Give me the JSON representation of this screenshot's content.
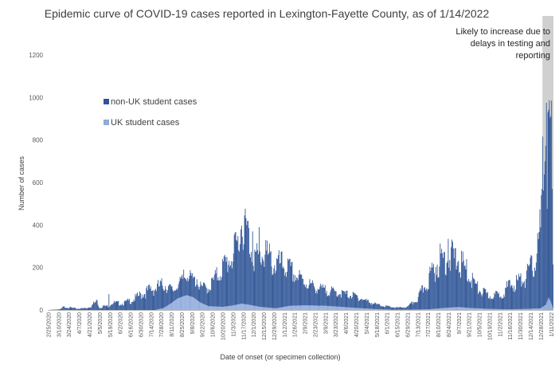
{
  "chart_data": {
    "type": "bar",
    "stacked": true,
    "title": "Epidemic curve of COVID-19 cases reported in Lexington-Fayette County, as of 1/14/2022",
    "xlabel": "Date of onset (or specimen collection)",
    "ylabel": "Number of cases",
    "ylim": [
      0,
      1200
    ],
    "yticks": [
      0,
      200,
      400,
      600,
      800,
      1000,
      1200
    ],
    "grid": false,
    "legend_position": "upper-left",
    "x_range": [
      "2020-02-25",
      "2022-01-14"
    ],
    "x_tick_labels": [
      "2/25/2020",
      "3/10/2020",
      "3/24/2020",
      "4/7/2020",
      "4/21/2020",
      "5/5/2020",
      "5/19/2020",
      "6/2/2020",
      "6/16/2020",
      "6/30/2020",
      "7/14/2020",
      "7/28/2020",
      "8/11/2020",
      "8/25/2020",
      "9/8/2020",
      "9/22/2020",
      "10/6/2020",
      "10/20/2020",
      "11/3/2020",
      "11/17/2020",
      "12/1/2020",
      "12/15/2020",
      "12/29/2020",
      "1/12/2021",
      "1/26/2021",
      "2/9/2021",
      "2/23/2021",
      "3/9/2021",
      "3/23/2021",
      "4/6/2021",
      "4/20/2021",
      "5/4/2021",
      "5/18/2021",
      "6/1/2021",
      "6/15/2021",
      "6/29/2021",
      "7/13/2021",
      "7/27/2021",
      "8/10/2021",
      "8/24/2021",
      "9/7/2021",
      "9/21/2021",
      "10/5/2021",
      "10/19/2021",
      "11/2/2021",
      "11/16/2021",
      "11/30/2021",
      "12/14/2021",
      "12/28/2021",
      "1/11/2022"
    ],
    "series": [
      {
        "name": "non-UK student cases",
        "color": "#2f5597",
        "points": [
          [
            "2020-02-25",
            0
          ],
          [
            "2020-03-13",
            3
          ],
          [
            "2020-03-17",
            12
          ],
          [
            "2020-03-25",
            10
          ],
          [
            "2020-04-05",
            5
          ],
          [
            "2020-04-18",
            8
          ],
          [
            "2020-04-24",
            15
          ],
          [
            "2020-04-27",
            25
          ],
          [
            "2020-05-02",
            35
          ],
          [
            "2020-05-05",
            8
          ],
          [
            "2020-05-10",
            15
          ],
          [
            "2020-05-18",
            15
          ],
          [
            "2020-05-22",
            28
          ],
          [
            "2020-06-05",
            25
          ],
          [
            "2020-06-20",
            40
          ],
          [
            "2020-07-01",
            60
          ],
          [
            "2020-07-15",
            80
          ],
          [
            "2020-08-01",
            90
          ],
          [
            "2020-08-15",
            40
          ],
          [
            "2020-09-01",
            80
          ],
          [
            "2020-09-20",
            60
          ],
          [
            "2020-10-01",
            70
          ],
          [
            "2020-10-20",
            150
          ],
          [
            "2020-11-05",
            200
          ],
          [
            "2020-11-12",
            250
          ],
          [
            "2020-11-16",
            330
          ],
          [
            "2020-11-20",
            300
          ],
          [
            "2020-11-30",
            200
          ],
          [
            "2020-12-08",
            180
          ],
          [
            "2020-12-15",
            210
          ],
          [
            "2020-12-29",
            170
          ],
          [
            "2021-01-12",
            160
          ],
          [
            "2021-01-26",
            120
          ],
          [
            "2021-02-09",
            90
          ],
          [
            "2021-02-23",
            70
          ],
          [
            "2021-03-09",
            60
          ],
          [
            "2021-03-23",
            55
          ],
          [
            "2021-04-06",
            50
          ],
          [
            "2021-04-20",
            45
          ],
          [
            "2021-05-04",
            30
          ],
          [
            "2021-05-18",
            18
          ],
          [
            "2021-06-01",
            12
          ],
          [
            "2021-06-15",
            8
          ],
          [
            "2021-06-29",
            10
          ],
          [
            "2021-07-13",
            40
          ],
          [
            "2021-07-27",
            110
          ],
          [
            "2021-08-10",
            180
          ],
          [
            "2021-08-24",
            200
          ],
          [
            "2021-09-07",
            180
          ],
          [
            "2021-09-21",
            130
          ],
          [
            "2021-10-05",
            70
          ],
          [
            "2021-10-19",
            50
          ],
          [
            "2021-11-02",
            55
          ],
          [
            "2021-11-16",
            90
          ],
          [
            "2021-11-30",
            110
          ],
          [
            "2021-12-10",
            130
          ],
          [
            "2021-12-20",
            180
          ],
          [
            "2021-12-28",
            300
          ],
          [
            "2022-01-02",
            650
          ],
          [
            "2022-01-04",
            750
          ],
          [
            "2022-01-06",
            450
          ],
          [
            "2022-01-07",
            800
          ],
          [
            "2022-01-08",
            550
          ],
          [
            "2022-01-10",
            900
          ],
          [
            "2022-01-11",
            620
          ],
          [
            "2022-01-12",
            700
          ],
          [
            "2022-01-13",
            400
          ],
          [
            "2022-01-14",
            150
          ]
        ]
      },
      {
        "name": "UK student cases",
        "color": "#8faadc",
        "points": [
          [
            "2020-02-25",
            0
          ],
          [
            "2020-07-20",
            0
          ],
          [
            "2020-08-01",
            10
          ],
          [
            "2020-08-10",
            30
          ],
          [
            "2020-08-20",
            55
          ],
          [
            "2020-09-01",
            70
          ],
          [
            "2020-09-10",
            60
          ],
          [
            "2020-09-20",
            35
          ],
          [
            "2020-10-01",
            18
          ],
          [
            "2020-10-20",
            15
          ],
          [
            "2020-11-01",
            20
          ],
          [
            "2020-11-15",
            30
          ],
          [
            "2020-11-25",
            25
          ],
          [
            "2020-12-10",
            15
          ],
          [
            "2021-01-01",
            8
          ],
          [
            "2021-01-20",
            20
          ],
          [
            "2021-02-10",
            22
          ],
          [
            "2021-03-09",
            20
          ],
          [
            "2021-04-20",
            10
          ],
          [
            "2021-05-18",
            4
          ],
          [
            "2021-06-15",
            1
          ],
          [
            "2021-07-27",
            3
          ],
          [
            "2021-08-20",
            10
          ],
          [
            "2021-09-07",
            14
          ],
          [
            "2021-09-21",
            10
          ],
          [
            "2021-10-19",
            5
          ],
          [
            "2021-11-16",
            3
          ],
          [
            "2021-12-10",
            5
          ],
          [
            "2021-12-28",
            8
          ],
          [
            "2022-01-04",
            25
          ],
          [
            "2022-01-08",
            60
          ],
          [
            "2022-01-11",
            40
          ],
          [
            "2022-01-14",
            10
          ]
        ]
      }
    ],
    "spikes": [
      {
        "date": "2020-05-02",
        "value": 45
      },
      {
        "date": "2020-05-18",
        "value": 75
      },
      {
        "date": "2020-08-28",
        "value": 190
      },
      {
        "date": "2020-09-15",
        "value": 145
      },
      {
        "date": "2020-11-12",
        "value": 275
      },
      {
        "date": "2020-11-16",
        "value": 345
      },
      {
        "date": "2020-11-19",
        "value": 445
      },
      {
        "date": "2020-11-24",
        "value": 420
      },
      {
        "date": "2020-11-30",
        "value": 370
      },
      {
        "date": "2020-12-09",
        "value": 390
      },
      {
        "date": "2020-12-18",
        "value": 330
      },
      {
        "date": "2021-08-24",
        "value": 335
      },
      {
        "date": "2021-12-30",
        "value": 570
      },
      {
        "date": "2022-01-03",
        "value": 700
      },
      {
        "date": "2022-01-05",
        "value": 975
      },
      {
        "date": "2022-01-07",
        "value": 930
      },
      {
        "date": "2022-01-10",
        "value": 905
      }
    ],
    "annotation": {
      "lines": [
        "Likely to increase due to",
        "delays in testing and",
        "reporting"
      ],
      "shaded_from": "2021-12-31",
      "shaded_to": "2022-01-14",
      "shade_color": "#d0d0d0"
    }
  }
}
